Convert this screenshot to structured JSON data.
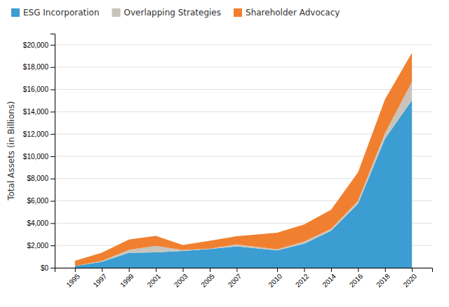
{
  "chart_data": {
    "type": "area",
    "stacked": true,
    "y_label": "Total Assets (in Billions)",
    "x": [
      1995,
      1997,
      1999,
      2001,
      2003,
      2005,
      2007,
      2010,
      2012,
      2014,
      2016,
      2018,
      2020
    ],
    "series": [
      {
        "name": "ESG Incorporation",
        "color": "#3B9DD2",
        "values": [
          162,
          529,
          1343,
          1376,
          1513,
          1685,
          1917,
          1554,
          2154,
          3314,
          5736,
          11570,
          15030
        ]
      },
      {
        "name": "Overlapping Strategies",
        "color": "#C8C4BC",
        "values": [
          0,
          84,
          265,
          592,
          75,
          30,
          179,
          98,
          189,
          174,
          263,
          497,
          1650
        ]
      },
      {
        "name": "Shareholder Advocacy",
        "color": "#F08030",
        "values": [
          473,
          736,
          922,
          897,
          448,
          703,
          739,
          1497,
          1536,
          1720,
          2560,
          3035,
          2600
        ]
      }
    ],
    "xlim": [
      1993.5,
      2021.5
    ],
    "xticks": [
      1995,
      1997,
      1999,
      2001,
      2003,
      2005,
      2007,
      2010,
      2012,
      2014,
      2016,
      2018,
      2020
    ],
    "ylim": [
      0,
      21000
    ],
    "yticks": [
      {
        "value": 0,
        "label": "$0"
      },
      {
        "value": 2000,
        "label": "$2,000"
      },
      {
        "value": 4000,
        "label": "$4,000"
      },
      {
        "value": 6000,
        "label": "$6,000"
      },
      {
        "value": 8000,
        "label": "$8,000"
      },
      {
        "value": 10000,
        "label": "$10,000"
      },
      {
        "value": 12000,
        "label": "$12,000"
      },
      {
        "value": 14000,
        "label": "$14,000"
      },
      {
        "value": 16000,
        "label": "$16,000"
      },
      {
        "value": 18000,
        "label": "$18,000"
      },
      {
        "value": 20000,
        "label": "$20,000"
      }
    ],
    "grid": true,
    "legend": "top-left"
  }
}
